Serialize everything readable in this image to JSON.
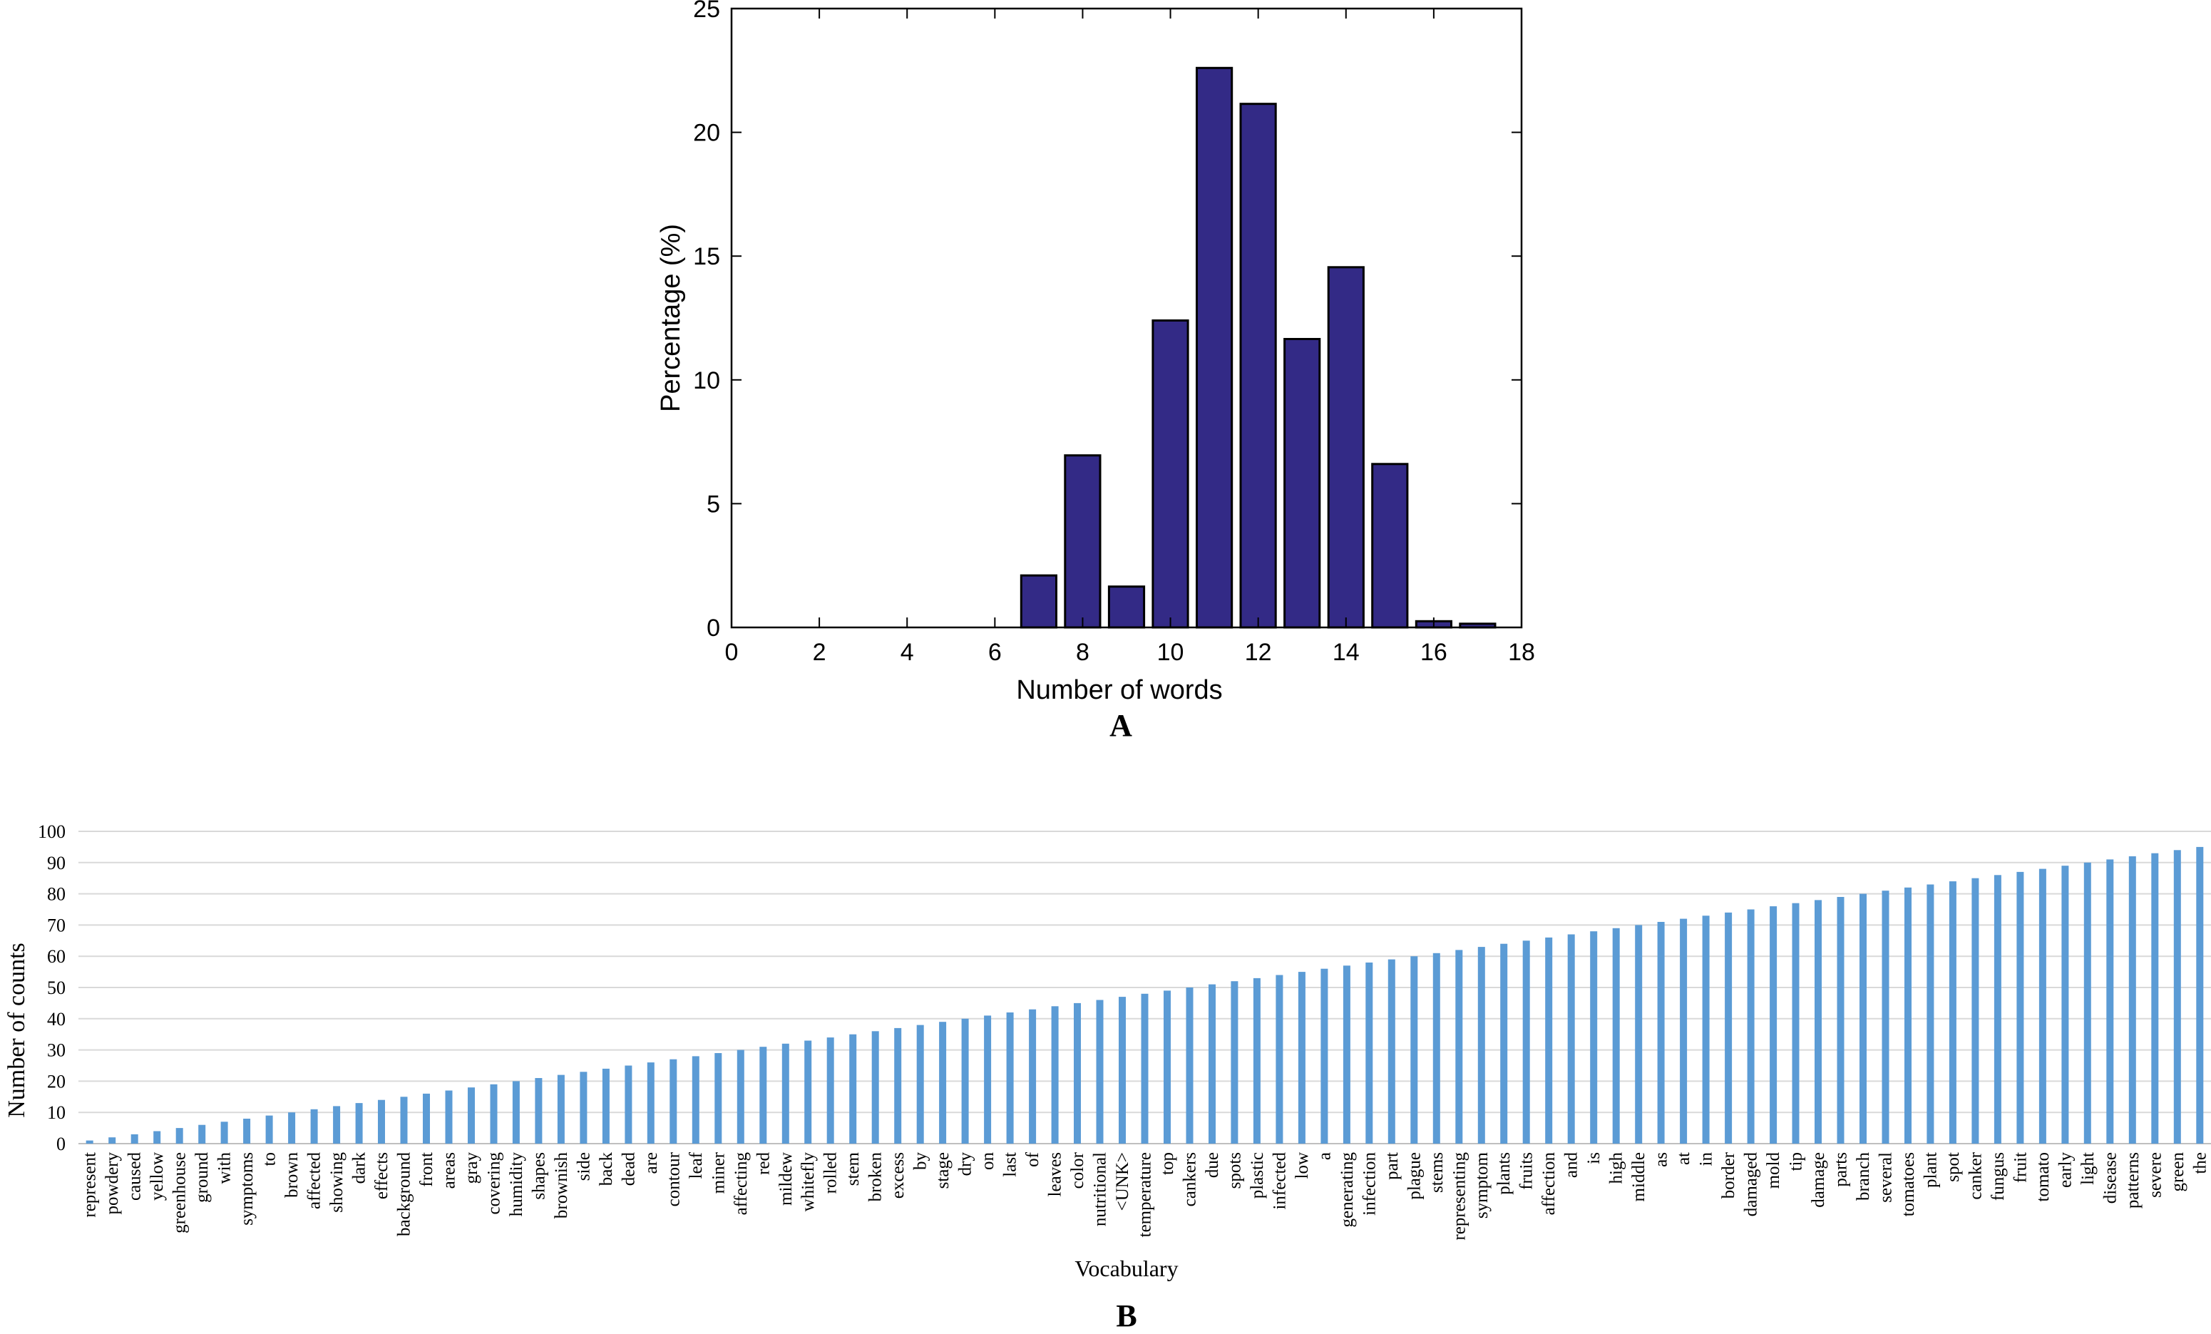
{
  "colors": {
    "bar_a": "#332a86",
    "bar_a_edge": "#000000",
    "bar_b": "#5b9bd5",
    "grid_b": "#d9d9d9",
    "axis": "#000000"
  },
  "chart_data": [
    {
      "id": "A",
      "type": "bar",
      "panel_label": "A",
      "title": "",
      "xlabel": "Number of words",
      "ylabel": "Percentage (%)",
      "xlim": [
        0,
        18
      ],
      "ylim": [
        0,
        25
      ],
      "xticks": [
        0,
        2,
        4,
        6,
        8,
        10,
        12,
        14,
        16,
        18
      ],
      "yticks": [
        0,
        5,
        10,
        15,
        20,
        25
      ],
      "x": [
        7,
        8,
        9,
        10,
        11,
        12,
        13,
        14,
        15,
        16,
        17
      ],
      "values": [
        2.1,
        6.95,
        1.65,
        12.4,
        22.6,
        21.15,
        11.65,
        14.55,
        6.6,
        0.25,
        0.15
      ]
    },
    {
      "id": "B",
      "type": "bar",
      "panel_label": "B",
      "title": "",
      "xlabel": "Vocabulary",
      "ylabel": "Number of counts",
      "ylim": [
        0,
        100
      ],
      "yticks": [
        0,
        10,
        20,
        30,
        40,
        50,
        60,
        70,
        80,
        90,
        100
      ],
      "grid": true,
      "categories": [
        "represent",
        "powdery",
        "caused",
        "yellow",
        "greenhouse",
        "ground",
        "with",
        "symptoms",
        "to",
        "brown",
        "affected",
        "showing",
        "dark",
        "effects",
        "background",
        "front",
        "areas",
        "gray",
        "covering",
        "humidity",
        "shapes",
        "brownish",
        "side",
        "back",
        "dead",
        "are",
        "contour",
        "leaf",
        "miner",
        "affecting",
        "red",
        "mildew",
        "whitefly",
        "rolled",
        "stem",
        "broken",
        "excess",
        "by",
        "stage",
        "dry",
        "on",
        "last",
        "of",
        "leaves",
        "color",
        "nutritional",
        "<UNK>",
        "temperature",
        "top",
        "cankers",
        "due",
        "spots",
        "plastic",
        "infected",
        "low",
        "a",
        "generating",
        "infection",
        "part",
        "plague",
        "stems",
        "representing",
        "symptom",
        "plants",
        "fruits",
        "affection",
        "and",
        "is",
        "high",
        "middle",
        "as",
        "at",
        "in",
        "border",
        "damaged",
        "mold",
        "tip",
        "damage",
        "parts",
        "branch",
        "several",
        "tomatoes",
        "plant",
        "spot",
        "canker",
        "fungus",
        "fruit",
        "tomato",
        "early",
        "light",
        "disease",
        "patterns",
        "severe",
        "green",
        "the"
      ],
      "values": [
        1,
        2,
        3,
        4,
        5,
        6,
        7,
        8,
        9,
        10,
        11,
        12,
        13,
        14,
        15,
        16,
        17,
        18,
        19,
        20,
        21,
        22,
        23,
        24,
        25,
        26,
        27,
        28,
        29,
        30,
        31,
        32,
        33,
        34,
        35,
        36,
        37,
        38,
        39,
        40,
        41,
        42,
        43,
        44,
        45,
        46,
        47,
        48,
        49,
        50,
        51,
        52,
        53,
        54,
        55,
        56,
        57,
        58,
        59,
        60,
        61,
        62,
        63,
        64,
        65,
        66,
        67,
        68,
        69,
        70,
        71,
        72,
        73,
        74,
        75,
        76,
        77,
        78,
        79,
        80,
        81,
        82,
        83,
        84,
        85,
        86,
        87,
        88,
        89,
        90,
        91,
        92,
        93,
        94,
        95
      ]
    }
  ]
}
